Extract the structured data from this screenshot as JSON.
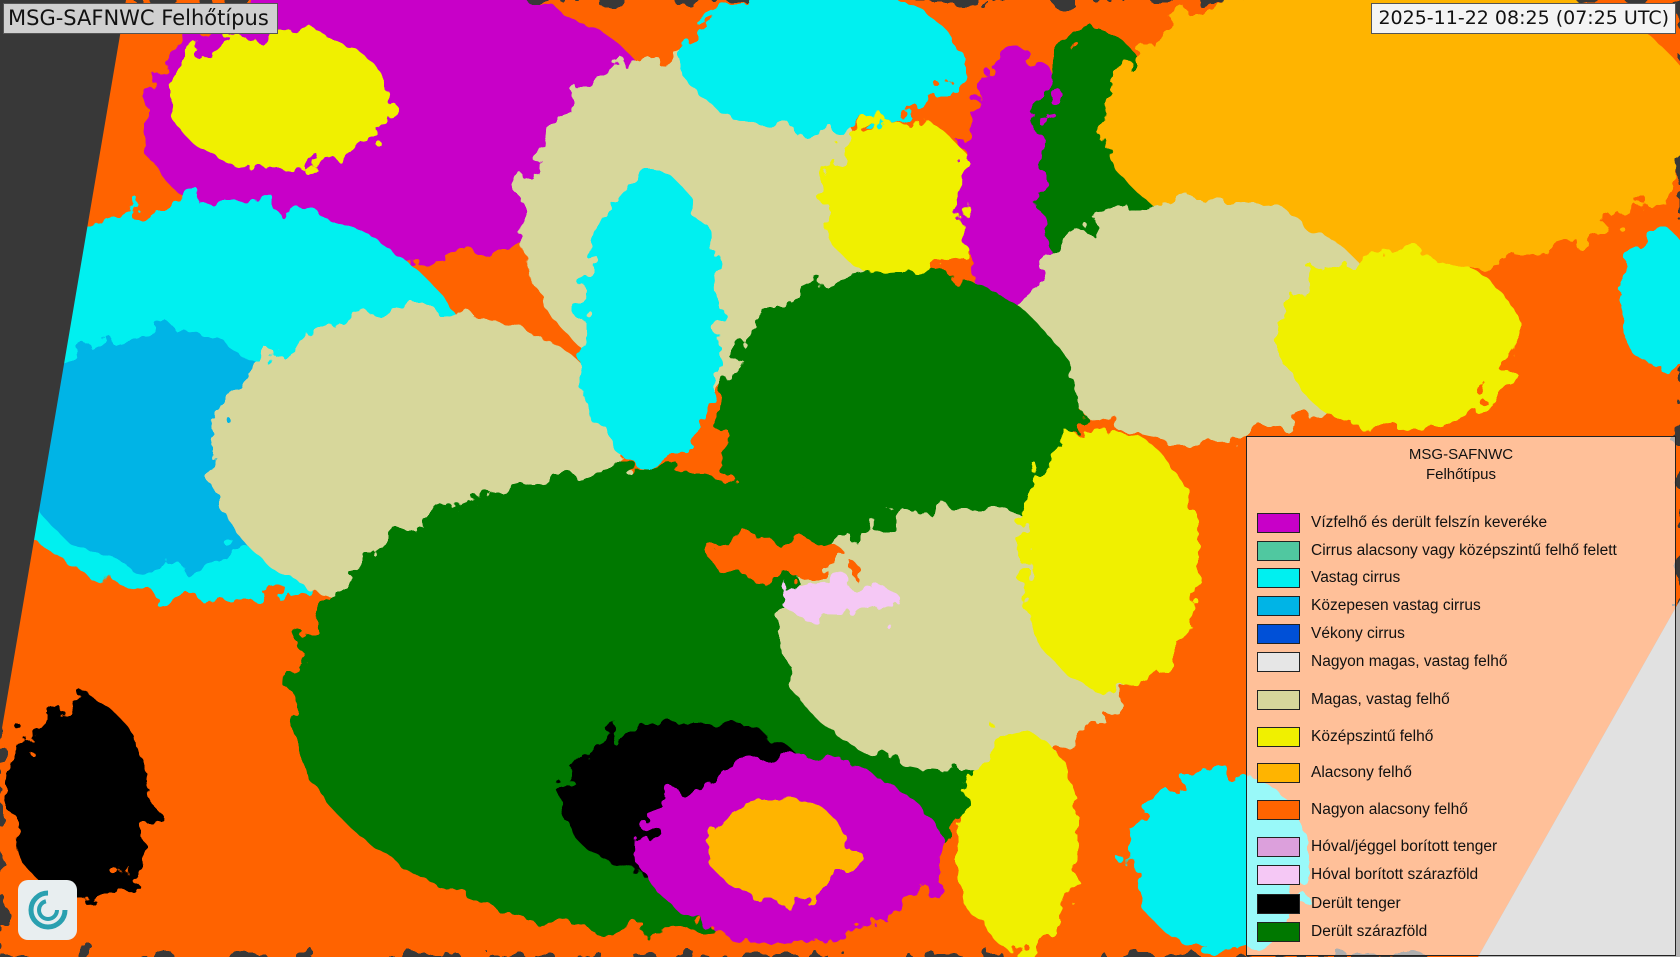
{
  "header": {
    "title": "MSG-SAFNWC Felhőtípus",
    "timestamp": "2025-11-22 08:25 (07:25 UTC)"
  },
  "legend": {
    "title_line1": "MSG-SAFNWC",
    "title_line2": "Felhőtípus",
    "items": [
      {
        "label": "Vízfelhő és derült felszín keveréke",
        "color": "#c800c8"
      },
      {
        "label": "Cirrus alacsony vagy középszintű felhő felett",
        "color": "#50c8a0"
      },
      {
        "label": "Vastag cirrus",
        "color": "#00f0f0"
      },
      {
        "label": "Közepesen vastag cirrus",
        "color": "#00b4e6"
      },
      {
        "label": "Vékony cirrus",
        "color": "#0050d7"
      },
      {
        "label": "Nagyon magas, vastag felhő",
        "color": "#e6e6e6"
      },
      {
        "label": "Magas, vastag felhő",
        "color": "#d7d79b"
      },
      {
        "label": "Középszintű felhő",
        "color": "#f0f000"
      },
      {
        "label": "Alacsony felhő",
        "color": "#ffb400"
      },
      {
        "label": "Nagyon alacsony felhő",
        "color": "#ff6400"
      },
      {
        "label": "Hóval/jéggel borított tenger",
        "color": "#dca0dc"
      },
      {
        "label": "Hóval borított szárazföld",
        "color": "#f5c8f5"
      },
      {
        "label": "Derült tenger",
        "color": "#000000"
      },
      {
        "label": "Derült szárazföld",
        "color": "#007800"
      }
    ]
  },
  "logo": {
    "icon": "swirl-logo-icon"
  }
}
